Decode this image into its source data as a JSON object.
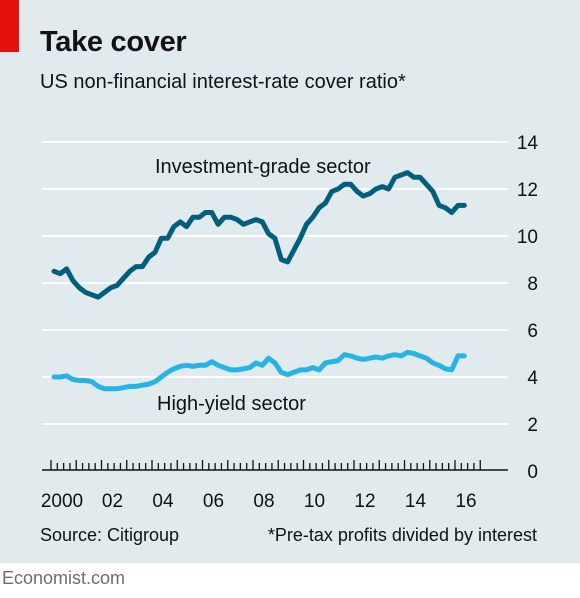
{
  "header": {
    "title": "Take cover",
    "subtitle": "US non-financial interest-rate cover ratio*"
  },
  "footer": {
    "source": "Source: Citigroup",
    "footnote": "*Pre-tax profits divided by interest",
    "brand": "Economist.com"
  },
  "colors": {
    "panel": "#e1eaed",
    "accent": "#e3120b",
    "investment_grade": "#005f7f",
    "high_yield": "#26b4e6",
    "gridline": "#ffffff"
  },
  "chart_data": {
    "type": "line",
    "title": "Take cover",
    "subtitle": "US non-financial interest-rate cover ratio*",
    "xlabel": "",
    "ylabel": "",
    "ylim": [
      0,
      14
    ],
    "yticks": [
      0,
      2,
      4,
      6,
      8,
      10,
      12,
      14
    ],
    "xlim": [
      2000,
      2017
    ],
    "xtick_labels": [
      {
        "x": 2000,
        "label": "2000"
      },
      {
        "x": 2002,
        "label": "02"
      },
      {
        "x": 2004,
        "label": "04"
      },
      {
        "x": 2006,
        "label": "06"
      },
      {
        "x": 2008,
        "label": "08"
      },
      {
        "x": 2010,
        "label": "10"
      },
      {
        "x": 2012,
        "label": "12"
      },
      {
        "x": 2014,
        "label": "14"
      },
      {
        "x": 2016,
        "label": "16"
      }
    ],
    "grid": true,
    "y_axis_position": "right",
    "series": [
      {
        "name": "Investment-grade sector",
        "x": [
          2000.0,
          2000.25,
          2000.5,
          2000.75,
          2001.0,
          2001.25,
          2001.5,
          2001.75,
          2002.0,
          2002.25,
          2002.5,
          2002.75,
          2003.0,
          2003.25,
          2003.5,
          2003.75,
          2004.0,
          2004.25,
          2004.5,
          2004.75,
          2005.0,
          2005.25,
          2005.5,
          2005.75,
          2006.0,
          2006.25,
          2006.5,
          2006.75,
          2007.0,
          2007.25,
          2007.5,
          2007.75,
          2008.0,
          2008.25,
          2008.5,
          2008.75,
          2009.0,
          2009.25,
          2009.5,
          2009.75,
          2010.0,
          2010.25,
          2010.5,
          2010.75,
          2011.0,
          2011.25,
          2011.5,
          2011.75,
          2012.0,
          2012.25,
          2012.5,
          2012.75,
          2013.0,
          2013.25,
          2013.5,
          2013.75,
          2014.0,
          2014.25,
          2014.5,
          2014.75,
          2015.0,
          2015.25,
          2015.5,
          2015.75,
          2016.0,
          2016.25
        ],
        "y": [
          8.5,
          8.4,
          8.6,
          8.1,
          7.8,
          7.6,
          7.5,
          7.4,
          7.6,
          7.8,
          7.9,
          8.2,
          8.5,
          8.7,
          8.7,
          9.1,
          9.3,
          9.9,
          9.9,
          10.4,
          10.6,
          10.4,
          10.8,
          10.8,
          11.0,
          11.0,
          10.5,
          10.8,
          10.8,
          10.7,
          10.5,
          10.6,
          10.7,
          10.6,
          10.1,
          9.9,
          9.0,
          8.9,
          9.4,
          9.9,
          10.5,
          10.8,
          11.2,
          11.4,
          11.9,
          12.0,
          12.2,
          12.2,
          11.9,
          11.7,
          11.8,
          12.0,
          12.1,
          12.0,
          12.5,
          12.6,
          12.7,
          12.5,
          12.5,
          12.2,
          11.9,
          11.3,
          11.2,
          11.0,
          11.3,
          11.3
        ]
      },
      {
        "name": "High-yield sector",
        "x": [
          2000.0,
          2000.25,
          2000.5,
          2000.75,
          2001.0,
          2001.25,
          2001.5,
          2001.75,
          2002.0,
          2002.25,
          2002.5,
          2002.75,
          2003.0,
          2003.25,
          2003.5,
          2003.75,
          2004.0,
          2004.25,
          2004.5,
          2004.75,
          2005.0,
          2005.25,
          2005.5,
          2005.75,
          2006.0,
          2006.25,
          2006.5,
          2006.75,
          2007.0,
          2007.25,
          2007.5,
          2007.75,
          2008.0,
          2008.25,
          2008.5,
          2008.75,
          2009.0,
          2009.25,
          2009.5,
          2009.75,
          2010.0,
          2010.25,
          2010.5,
          2010.75,
          2011.0,
          2011.25,
          2011.5,
          2011.75,
          2012.0,
          2012.25,
          2012.5,
          2012.75,
          2013.0,
          2013.25,
          2013.5,
          2013.75,
          2014.0,
          2014.25,
          2014.5,
          2014.75,
          2015.0,
          2015.25,
          2015.5,
          2015.75,
          2016.0,
          2016.25
        ],
        "y": [
          4.0,
          4.0,
          4.05,
          3.9,
          3.85,
          3.85,
          3.8,
          3.6,
          3.5,
          3.5,
          3.5,
          3.55,
          3.6,
          3.6,
          3.65,
          3.7,
          3.8,
          4.0,
          4.2,
          4.35,
          4.45,
          4.5,
          4.45,
          4.5,
          4.5,
          4.65,
          4.5,
          4.4,
          4.3,
          4.3,
          4.35,
          4.4,
          4.6,
          4.5,
          4.8,
          4.6,
          4.2,
          4.1,
          4.2,
          4.3,
          4.3,
          4.4,
          4.3,
          4.6,
          4.65,
          4.7,
          4.95,
          4.9,
          4.8,
          4.75,
          4.8,
          4.85,
          4.8,
          4.9,
          4.95,
          4.9,
          5.05,
          5.0,
          4.9,
          4.8,
          4.6,
          4.5,
          4.35,
          4.3,
          4.9,
          4.9
        ]
      }
    ],
    "annotations": [
      {
        "text": "Investment-grade sector",
        "series": 0
      },
      {
        "text": "High-yield sector",
        "series": 1
      }
    ]
  }
}
